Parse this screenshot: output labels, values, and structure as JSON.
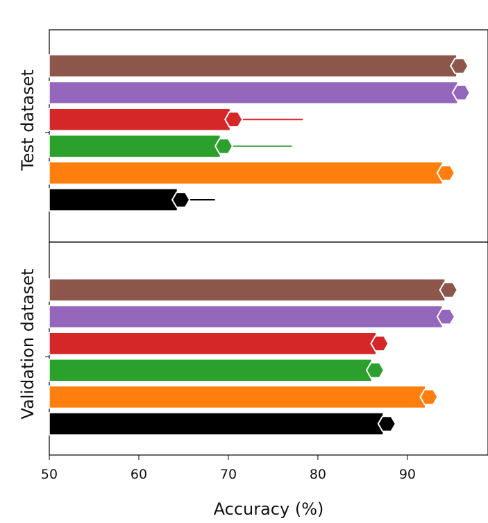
{
  "chart_data": {
    "type": "bar",
    "orientation": "horizontal",
    "xlabel": "Accuracy (%)",
    "xlim": [
      50,
      99
    ],
    "x_ticks": [
      50,
      60,
      70,
      80,
      90
    ],
    "grid": false,
    "legend": null,
    "colors": [
      "#000000",
      "#ff7f0e",
      "#2ca02c",
      "#d62728",
      "#9467bd",
      "#8c564b"
    ],
    "panels": [
      {
        "ylabel": "Test dataset",
        "bars": [
          {
            "value": 64.3,
            "marker": 64.7,
            "err_hi": 68.5
          },
          {
            "value": 93.9,
            "marker": 94.3,
            "err_hi": null
          },
          {
            "value": 69.1,
            "marker": 69.5,
            "err_hi": 77.1
          },
          {
            "value": 70.2,
            "marker": 70.6,
            "err_hi": 78.3
          },
          {
            "value": 95.6,
            "marker": 96.0,
            "err_hi": null
          },
          {
            "value": 95.5,
            "marker": 95.8,
            "err_hi": null
          }
        ]
      },
      {
        "ylabel": "Validation dataset",
        "bars": [
          {
            "value": 87.3,
            "marker": 87.7,
            "err_hi": 88.6
          },
          {
            "value": 92.0,
            "marker": 92.4,
            "err_hi": null
          },
          {
            "value": 86.0,
            "marker": 86.4,
            "err_hi": null
          },
          {
            "value": 86.5,
            "marker": 86.9,
            "err_hi": 87.8
          },
          {
            "value": 93.9,
            "marker": 94.3,
            "err_hi": null
          },
          {
            "value": 94.2,
            "marker": 94.6,
            "err_hi": null
          }
        ]
      }
    ]
  }
}
